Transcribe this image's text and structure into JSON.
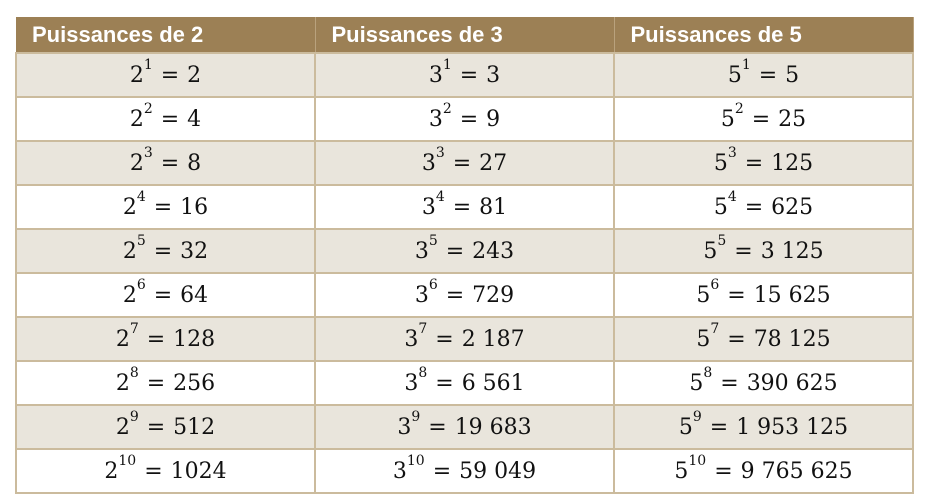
{
  "colors": {
    "header": "#9c8055",
    "stripe": "#e9e5dc",
    "border": "#cbbb9d"
  },
  "headers": [
    "Puissances de 2",
    "Puissances de 3",
    "Puissances de 5"
  ],
  "columns": [
    {
      "base": "2",
      "rows": [
        [
          "1",
          "2"
        ],
        [
          "2",
          "4"
        ],
        [
          "3",
          "8"
        ],
        [
          "4",
          "16"
        ],
        [
          "5",
          "32"
        ],
        [
          "6",
          "64"
        ],
        [
          "7",
          "128"
        ],
        [
          "8",
          "256"
        ],
        [
          "9",
          "512"
        ],
        [
          "10",
          "1024"
        ]
      ]
    },
    {
      "base": "3",
      "rows": [
        [
          "1",
          "3"
        ],
        [
          "2",
          "9"
        ],
        [
          "3",
          "27"
        ],
        [
          "4",
          "81"
        ],
        [
          "5",
          "243"
        ],
        [
          "6",
          "729"
        ],
        [
          "7",
          "2 187"
        ],
        [
          "8",
          "6 561"
        ],
        [
          "9",
          "19 683"
        ],
        [
          "10",
          "59 049"
        ]
      ]
    },
    {
      "base": "5",
      "rows": [
        [
          "1",
          "5"
        ],
        [
          "2",
          "25"
        ],
        [
          "3",
          "125"
        ],
        [
          "4",
          "625"
        ],
        [
          "5",
          "3 125"
        ],
        [
          "6",
          "15 625"
        ],
        [
          "7",
          "78 125"
        ],
        [
          "8",
          "390 625"
        ],
        [
          "9",
          "1 953 125"
        ],
        [
          "10",
          "9 765 625"
        ]
      ]
    }
  ],
  "equals": "="
}
